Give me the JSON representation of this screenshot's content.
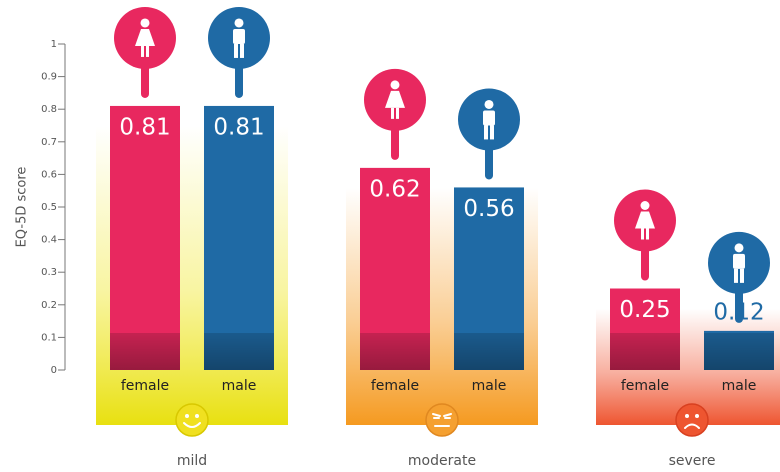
{
  "chart_data": {
    "type": "bar",
    "y_label": "EQ-5D score",
    "categories": [
      "mild",
      "moderate",
      "severe"
    ],
    "series": [
      {
        "name": "female",
        "color": "#e8285f",
        "values": [
          0.81,
          0.62,
          0.25
        ]
      },
      {
        "name": "male",
        "color": "#1f6aa5",
        "values": [
          0.81,
          0.56,
          0.12
        ]
      }
    ],
    "ylim": [
      0,
      1
    ],
    "yticks": [
      0,
      0.1,
      0.2,
      0.3,
      0.4,
      0.5,
      0.6,
      0.7,
      0.8,
      0.9,
      1
    ]
  }
}
